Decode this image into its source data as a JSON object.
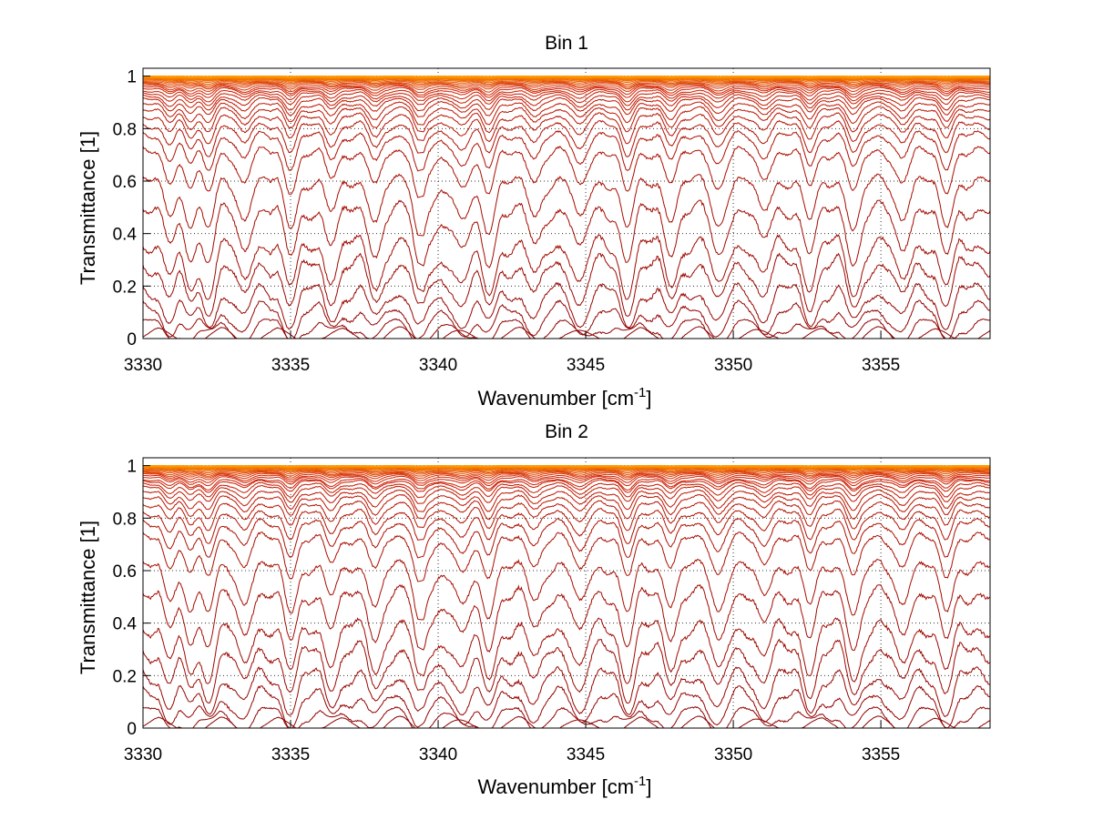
{
  "chart_data": [
    {
      "type": "line",
      "title": "Bin 1",
      "xlabel": "Wavenumber [cm",
      "xlabel_sup": "-1",
      "xlabel_suffix": "]",
      "ylabel": "Transmittance [1]",
      "xlim": [
        3330,
        3358.7
      ],
      "ylim": [
        0,
        1.03
      ],
      "xticks": [
        3330,
        3335,
        3340,
        3345,
        3350,
        3355
      ],
      "yticks": [
        0,
        0.2,
        0.4,
        0.6,
        0.8,
        1
      ],
      "ytick_labels": [
        "0",
        "0.2",
        "0.4",
        "0.6",
        "0.8",
        "1"
      ],
      "grid": true,
      "series_count": 32,
      "series_min_transmittance": [
        0.0,
        0.005,
        0.02,
        0.05,
        0.11,
        0.17,
        0.29,
        0.41,
        0.55,
        0.64,
        0.7,
        0.75,
        0.79,
        0.82,
        0.85,
        0.87,
        0.89,
        0.905,
        0.92,
        0.93,
        0.94,
        0.95,
        0.957,
        0.964,
        0.97,
        0.976,
        0.981,
        0.986,
        0.99,
        0.993,
        0.996,
        0.998
      ],
      "absorption_lines_cm1": [
        3330.9,
        3331.6,
        3332.2,
        3333.4,
        3335.0,
        3336.4,
        3337.9,
        3339.35,
        3340.8,
        3341.7,
        3343.3,
        3344.8,
        3346.4,
        3347.9,
        3349.5,
        3351.0,
        3352.6,
        3354.1,
        3355.7,
        3357.2
      ]
    },
    {
      "type": "line",
      "title": "Bin 2",
      "xlabel": "Wavenumber [cm",
      "xlabel_sup": "-1",
      "xlabel_suffix": "]",
      "ylabel": "Transmittance [1]",
      "xlim": [
        3330,
        3358.7
      ],
      "ylim": [
        0,
        1.03
      ],
      "xticks": [
        3330,
        3335,
        3340,
        3345,
        3350,
        3355
      ],
      "yticks": [
        0,
        0.2,
        0.4,
        0.6,
        0.8,
        1
      ],
      "ytick_labels": [
        "0",
        "0.2",
        "0.4",
        "0.6",
        "0.8",
        "1"
      ],
      "grid": true,
      "series_count": 32,
      "series_min_transmittance": [
        0.0,
        0.006,
        0.025,
        0.06,
        0.12,
        0.19,
        0.31,
        0.43,
        0.57,
        0.65,
        0.71,
        0.76,
        0.8,
        0.83,
        0.86,
        0.88,
        0.9,
        0.91,
        0.925,
        0.935,
        0.945,
        0.953,
        0.96,
        0.967,
        0.973,
        0.978,
        0.983,
        0.987,
        0.991,
        0.994,
        0.996,
        0.998
      ],
      "absorption_lines_cm1": [
        3330.9,
        3331.6,
        3332.2,
        3333.4,
        3335.0,
        3336.4,
        3337.9,
        3339.35,
        3340.8,
        3341.7,
        3343.3,
        3344.8,
        3346.4,
        3347.9,
        3349.5,
        3351.0,
        3352.6,
        3354.1,
        3355.7,
        3357.2
      ]
    }
  ],
  "colors": {
    "series_dark": "#8b0000",
    "series_mid": "#d22000",
    "series_bright": "#ff9a00",
    "grid": "#333333",
    "axes": "#000000"
  }
}
